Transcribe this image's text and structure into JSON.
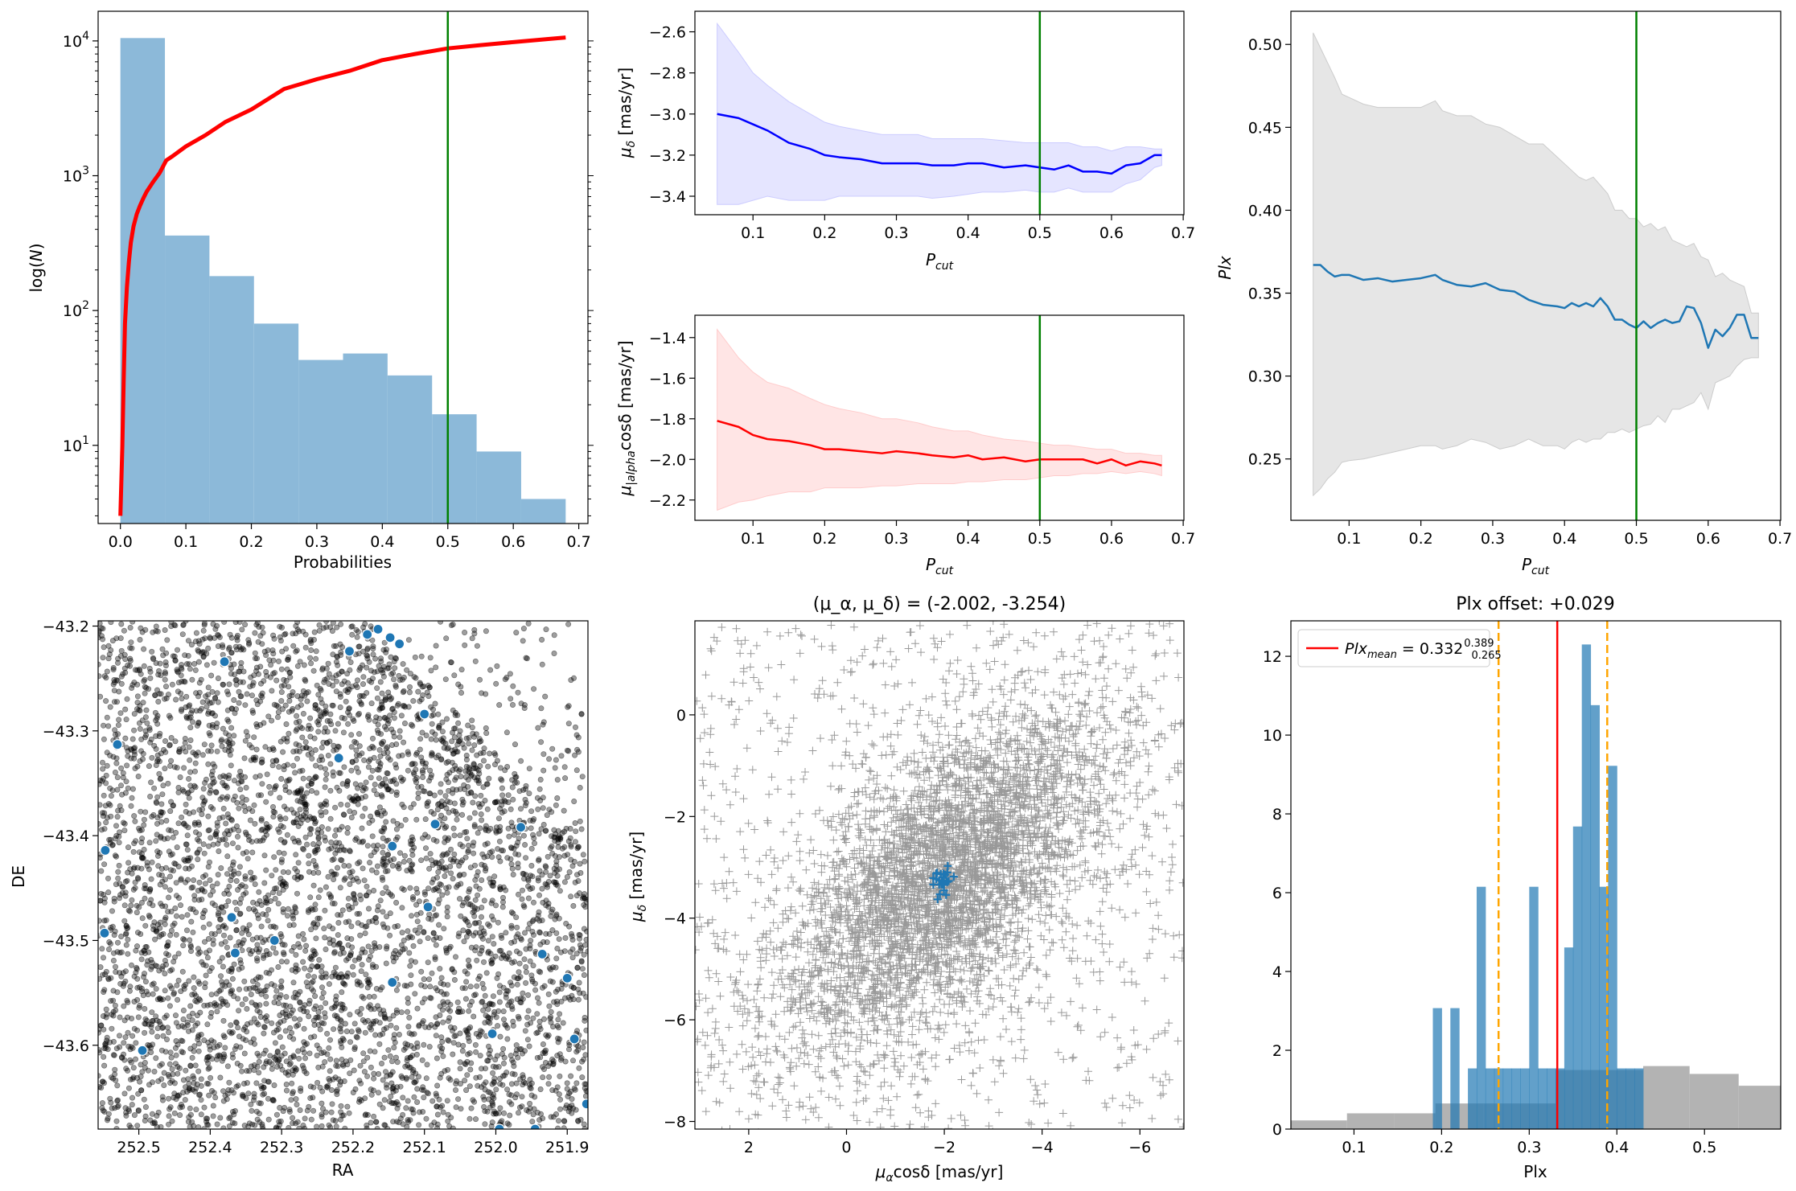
{
  "chart_data": [
    {
      "id": "p1",
      "type": "bar",
      "ylog": true,
      "xlim": [
        -0.034,
        0.714
      ],
      "ylim_log10": [
        0.42,
        4.22
      ],
      "xlabel": "Probabilities",
      "ylabel": "log(N)",
      "xticks": [
        0.0,
        0.1,
        0.2,
        0.3,
        0.4,
        0.5,
        0.6,
        0.7
      ],
      "xtick_labels": [
        "0.0",
        "0.1",
        "0.2",
        "0.3",
        "0.4",
        "0.5",
        "0.6",
        "0.7"
      ],
      "yticks_log10": [
        1,
        2,
        3,
        4
      ],
      "hist_edges": [
        0.0,
        0.068,
        0.136,
        0.204,
        0.272,
        0.34,
        0.408,
        0.476,
        0.544,
        0.612,
        0.68
      ],
      "hist_counts": [
        10500,
        360,
        180,
        80,
        43,
        48,
        33,
        17,
        9,
        4
      ],
      "hist_color": "#8cb9d9",
      "cumulative": {
        "color": "#ff0000",
        "x": [
          0.0,
          0.003,
          0.005,
          0.007,
          0.01,
          0.013,
          0.016,
          0.02,
          0.025,
          0.03,
          0.035,
          0.04,
          0.05,
          0.06,
          0.07,
          0.08,
          0.1,
          0.13,
          0.16,
          0.2,
          0.25,
          0.3,
          0.35,
          0.4,
          0.45,
          0.5,
          0.55,
          0.6,
          0.65,
          0.68
        ],
        "y": [
          3,
          10,
          30,
          80,
          150,
          230,
          320,
          420,
          520,
          600,
          680,
          760,
          900,
          1050,
          1300,
          1400,
          1650,
          2000,
          2500,
          3100,
          4400,
          5200,
          6000,
          7200,
          8000,
          8800,
          9300,
          9800,
          10300,
          10600
        ]
      },
      "vline": {
        "x": 0.5,
        "color": "#008000"
      }
    },
    {
      "id": "p2",
      "type": "line",
      "xlim": [
        0.019,
        0.701
      ],
      "ylim": [
        -3.49,
        -2.5
      ],
      "xlabel": "P_cut",
      "ylabel": "μ_δ [mas/yr]",
      "xticks": [
        0.1,
        0.2,
        0.3,
        0.4,
        0.5,
        0.6,
        0.7
      ],
      "xtick_labels": [
        "0.1",
        "0.2",
        "0.3",
        "0.4",
        "0.5",
        "0.6",
        "0.7"
      ],
      "yticks": [
        -3.4,
        -3.2,
        -3.0,
        -2.8,
        -2.6
      ],
      "ytick_labels": [
        "−3.4",
        "−3.2",
        "−3.0",
        "−2.8",
        "−2.6"
      ],
      "color": "#0000ff",
      "band_color": "#e5e5ff",
      "band_edge": "#ccccff",
      "x": [
        0.05,
        0.08,
        0.1,
        0.12,
        0.15,
        0.18,
        0.2,
        0.22,
        0.25,
        0.28,
        0.3,
        0.33,
        0.35,
        0.38,
        0.4,
        0.42,
        0.45,
        0.48,
        0.5,
        0.52,
        0.54,
        0.56,
        0.58,
        0.6,
        0.62,
        0.64,
        0.66,
        0.67
      ],
      "y": [
        -3.0,
        -3.02,
        -3.05,
        -3.08,
        -3.14,
        -3.17,
        -3.2,
        -3.21,
        -3.22,
        -3.24,
        -3.24,
        -3.24,
        -3.25,
        -3.25,
        -3.24,
        -3.24,
        -3.26,
        -3.25,
        -3.26,
        -3.27,
        -3.25,
        -3.28,
        -3.28,
        -3.29,
        -3.25,
        -3.24,
        -3.2,
        -3.2
      ],
      "upper": [
        -2.56,
        -2.7,
        -2.8,
        -2.86,
        -2.94,
        -3.0,
        -3.04,
        -3.06,
        -3.08,
        -3.1,
        -3.1,
        -3.1,
        -3.12,
        -3.12,
        -3.12,
        -3.12,
        -3.13,
        -3.14,
        -3.14,
        -3.14,
        -3.14,
        -3.16,
        -3.16,
        -3.18,
        -3.16,
        -3.16,
        -3.17,
        -3.17
      ],
      "lower": [
        -3.44,
        -3.44,
        -3.42,
        -3.4,
        -3.42,
        -3.42,
        -3.42,
        -3.4,
        -3.4,
        -3.4,
        -3.4,
        -3.4,
        -3.41,
        -3.4,
        -3.39,
        -3.38,
        -3.38,
        -3.37,
        -3.38,
        -3.38,
        -3.36,
        -3.38,
        -3.38,
        -3.38,
        -3.34,
        -3.32,
        -3.26,
        -3.25
      ],
      "vline": {
        "x": 0.5,
        "color": "#008000"
      }
    },
    {
      "id": "p3",
      "type": "line",
      "xlim": [
        0.019,
        0.701
      ],
      "ylim": [
        -2.3,
        -1.29
      ],
      "xlabel": "P_cut",
      "ylabel": "μ_|alpha cosδ [mas/yr]",
      "xticks": [
        0.1,
        0.2,
        0.3,
        0.4,
        0.5,
        0.6,
        0.7
      ],
      "xtick_labels": [
        "0.1",
        "0.2",
        "0.3",
        "0.4",
        "0.5",
        "0.6",
        "0.7"
      ],
      "yticks": [
        -2.2,
        -2.0,
        -1.8,
        -1.6,
        -1.4
      ],
      "ytick_labels": [
        "−2.2",
        "−2.0",
        "−1.8",
        "−1.6",
        "−1.4"
      ],
      "color": "#ff0000",
      "band_color": "#ffe5e5",
      "band_edge": "#ffcccc",
      "x": [
        0.05,
        0.08,
        0.1,
        0.12,
        0.15,
        0.18,
        0.2,
        0.22,
        0.25,
        0.28,
        0.3,
        0.33,
        0.35,
        0.38,
        0.4,
        0.42,
        0.45,
        0.48,
        0.5,
        0.52,
        0.54,
        0.56,
        0.58,
        0.6,
        0.62,
        0.64,
        0.66,
        0.67
      ],
      "y": [
        -1.81,
        -1.84,
        -1.88,
        -1.9,
        -1.91,
        -1.93,
        -1.95,
        -1.95,
        -1.96,
        -1.97,
        -1.96,
        -1.97,
        -1.98,
        -1.99,
        -1.98,
        -2.0,
        -1.99,
        -2.01,
        -2.0,
        -2.0,
        -2.0,
        -2.0,
        -2.02,
        -2.0,
        -2.03,
        -2.01,
        -2.02,
        -2.03
      ],
      "upper": [
        -1.36,
        -1.5,
        -1.57,
        -1.62,
        -1.65,
        -1.7,
        -1.73,
        -1.75,
        -1.77,
        -1.8,
        -1.8,
        -1.82,
        -1.84,
        -1.86,
        -1.86,
        -1.88,
        -1.9,
        -1.91,
        -1.92,
        -1.93,
        -1.93,
        -1.94,
        -1.95,
        -1.95,
        -1.97,
        -1.97,
        -1.98,
        -1.98
      ],
      "lower": [
        -2.25,
        -2.21,
        -2.2,
        -2.18,
        -2.16,
        -2.16,
        -2.14,
        -2.14,
        -2.14,
        -2.13,
        -2.13,
        -2.12,
        -2.12,
        -2.12,
        -2.11,
        -2.11,
        -2.1,
        -2.1,
        -2.09,
        -2.08,
        -2.08,
        -2.07,
        -2.07,
        -2.06,
        -2.07,
        -2.06,
        -2.07,
        -2.08
      ],
      "vline": {
        "x": 0.5,
        "color": "#008000"
      }
    },
    {
      "id": "p4",
      "type": "line",
      "xlim": [
        0.019,
        0.701
      ],
      "ylim": [
        0.213,
        0.52
      ],
      "xlabel": "P_cut",
      "ylabel": "Plx",
      "xticks": [
        0.1,
        0.2,
        0.3,
        0.4,
        0.5,
        0.6,
        0.7
      ],
      "xtick_labels": [
        "0.1",
        "0.2",
        "0.3",
        "0.4",
        "0.5",
        "0.6",
        "0.7"
      ],
      "yticks": [
        0.25,
        0.3,
        0.35,
        0.4,
        0.45,
        0.5
      ],
      "ytick_labels": [
        "0.25",
        "0.30",
        "0.35",
        "0.40",
        "0.45",
        "0.50"
      ],
      "color": "#1f77b4",
      "band_color": "#e6e6e6",
      "band_edge": "#cccccc",
      "x": [
        0.05,
        0.06,
        0.07,
        0.08,
        0.09,
        0.1,
        0.12,
        0.14,
        0.16,
        0.18,
        0.2,
        0.22,
        0.23,
        0.25,
        0.27,
        0.29,
        0.31,
        0.33,
        0.35,
        0.37,
        0.39,
        0.4,
        0.41,
        0.42,
        0.43,
        0.44,
        0.45,
        0.46,
        0.47,
        0.48,
        0.49,
        0.5,
        0.51,
        0.52,
        0.53,
        0.54,
        0.55,
        0.56,
        0.57,
        0.58,
        0.59,
        0.6,
        0.61,
        0.62,
        0.63,
        0.64,
        0.65,
        0.66,
        0.67
      ],
      "y": [
        0.367,
        0.367,
        0.363,
        0.36,
        0.361,
        0.361,
        0.358,
        0.359,
        0.357,
        0.358,
        0.359,
        0.361,
        0.358,
        0.355,
        0.354,
        0.356,
        0.352,
        0.351,
        0.346,
        0.343,
        0.342,
        0.341,
        0.344,
        0.342,
        0.344,
        0.342,
        0.347,
        0.342,
        0.334,
        0.334,
        0.331,
        0.329,
        0.333,
        0.329,
        0.332,
        0.334,
        0.332,
        0.333,
        0.342,
        0.341,
        0.332,
        0.317,
        0.328,
        0.324,
        0.329,
        0.337,
        0.337,
        0.323,
        0.323
      ],
      "upper": [
        0.507,
        0.498,
        0.489,
        0.48,
        0.47,
        0.468,
        0.464,
        0.462,
        0.462,
        0.462,
        0.462,
        0.466,
        0.46,
        0.457,
        0.457,
        0.452,
        0.45,
        0.445,
        0.44,
        0.44,
        0.432,
        0.428,
        0.424,
        0.42,
        0.418,
        0.42,
        0.415,
        0.41,
        0.4,
        0.4,
        0.395,
        0.395,
        0.39,
        0.392,
        0.388,
        0.39,
        0.382,
        0.38,
        0.378,
        0.38,
        0.372,
        0.37,
        0.36,
        0.362,
        0.358,
        0.356,
        0.354,
        0.338,
        0.338
      ],
      "lower": [
        0.228,
        0.232,
        0.238,
        0.242,
        0.248,
        0.249,
        0.25,
        0.252,
        0.254,
        0.256,
        0.258,
        0.258,
        0.256,
        0.258,
        0.262,
        0.26,
        0.256,
        0.258,
        0.262,
        0.258,
        0.258,
        0.256,
        0.26,
        0.262,
        0.26,
        0.262,
        0.262,
        0.266,
        0.266,
        0.268,
        0.266,
        0.268,
        0.27,
        0.271,
        0.276,
        0.272,
        0.28,
        0.28,
        0.282,
        0.284,
        0.29,
        0.28,
        0.296,
        0.298,
        0.3,
        0.306,
        0.31,
        0.311,
        0.311
      ],
      "vline": {
        "x": 0.5,
        "color": "#008000"
      }
    },
    {
      "id": "p5",
      "type": "scatter",
      "xlim": [
        252.557,
        251.871
      ],
      "ylim": [
        -43.68,
        -43.195
      ],
      "xlabel": "RA",
      "ylabel": "DE",
      "xticks": [
        252.5,
        252.4,
        252.3,
        252.2,
        252.1,
        252.0,
        251.9
      ],
      "xtick_labels": [
        "252.5",
        "252.4",
        "252.3",
        "252.2",
        "252.1",
        "252.0",
        "251.9"
      ],
      "yticks": [
        -43.6,
        -43.5,
        -43.4,
        -43.3,
        -43.2
      ],
      "ytick_labels": [
        "−43.6",
        "−43.5",
        "−43.4",
        "−43.3",
        "−43.2"
      ],
      "field_color": "#000000",
      "member_color": "#1f77b4",
      "members": [
        [
          252.53,
          -43.313
        ],
        [
          252.547,
          -43.414
        ],
        [
          252.548,
          -43.493
        ],
        [
          252.495,
          -43.605
        ],
        [
          252.38,
          -43.234
        ],
        [
          252.37,
          -43.478
        ],
        [
          252.365,
          -43.512
        ],
        [
          252.31,
          -43.5
        ],
        [
          252.22,
          -43.326
        ],
        [
          252.205,
          -43.224
        ],
        [
          252.18,
          -43.208
        ],
        [
          252.165,
          -43.203
        ],
        [
          252.148,
          -43.211
        ],
        [
          252.135,
          -43.217
        ],
        [
          252.1,
          -43.284
        ],
        [
          252.145,
          -43.41
        ],
        [
          252.145,
          -43.54
        ],
        [
          252.085,
          -43.389
        ],
        [
          252.095,
          -43.468
        ],
        [
          252.005,
          -43.589
        ],
        [
          251.995,
          -43.68
        ],
        [
          251.965,
          -43.392
        ],
        [
          251.935,
          -43.513
        ],
        [
          251.945,
          -43.68
        ],
        [
          251.9,
          -43.536
        ],
        [
          251.89,
          -43.594
        ],
        [
          251.873,
          -43.656
        ]
      ]
    },
    {
      "id": "p6",
      "type": "scatter",
      "title": "(μ_α, μ_δ) = (-2.002, -3.254)",
      "xlim": [
        3.1,
        -6.9
      ],
      "ylim": [
        -8.15,
        1.85
      ],
      "xlabel": "μ_α cosδ [mas/yr]",
      "ylabel": "μ_δ [mas/yr]",
      "xticks": [
        2,
        0,
        -2,
        -4,
        -6
      ],
      "xtick_labels": [
        "2",
        "0",
        "−2",
        "−4",
        "−6"
      ],
      "yticks": [
        -8,
        -6,
        -4,
        -2,
        0
      ],
      "ytick_labels": [
        "−8",
        "−6",
        "−4",
        "−2",
        "0"
      ],
      "field_color": "#000000",
      "member_color": "#1f77b4",
      "member_center": [
        -2.002,
        -3.254
      ]
    },
    {
      "id": "p7",
      "type": "bar",
      "title": "Plx offset: +0.029",
      "xlim": [
        0.028,
        0.587
      ],
      "ylim": [
        0,
        12.9
      ],
      "xlabel": "Plx",
      "xticks": [
        0.1,
        0.2,
        0.3,
        0.4,
        0.5
      ],
      "xtick_labels": [
        "0.1",
        "0.2",
        "0.3",
        "0.4",
        "0.5"
      ],
      "yticks": [
        0,
        2,
        4,
        6,
        8,
        10,
        12
      ],
      "ytick_labels": [
        "0",
        "2",
        "4",
        "6",
        "8",
        "10",
        "12"
      ],
      "field_hist": {
        "color": "#b3b3b3",
        "edges": [
          0.028,
          0.092,
          0.146,
          0.193,
          0.248,
          0.33,
          0.43,
          0.483,
          0.539,
          0.587
        ],
        "counts": [
          0.22,
          0.4,
          0.4,
          0.65,
          0.65,
          1.5,
          1.6,
          1.4,
          1.1
        ]
      },
      "member_hist": {
        "color": "#1f77b4",
        "edges": [
          0.19,
          0.2,
          0.21,
          0.22,
          0.23,
          0.24,
          0.25,
          0.26,
          0.27,
          0.28,
          0.29,
          0.3,
          0.31,
          0.32,
          0.33,
          0.34,
          0.35,
          0.36,
          0.37,
          0.38,
          0.39,
          0.4,
          0.41,
          0.42,
          0.43
        ],
        "counts": [
          3.07,
          0,
          3.07,
          0,
          1.54,
          6.15,
          1.54,
          1.54,
          1.54,
          1.54,
          1.54,
          6.15,
          1.54,
          1.54,
          1.54,
          4.61,
          7.68,
          12.3,
          10.76,
          6.15,
          9.22,
          1.54,
          1.54,
          1.54
        ]
      },
      "mean_line": {
        "x": 0.332,
        "color": "#ff0000"
      },
      "dashed_lines": {
        "x": [
          0.265,
          0.389
        ],
        "color": "#ffa500"
      },
      "legend": {
        "label": "Plx_mean = 0.332",
        "sup": "0.389",
        "sub": "0.265",
        "placement": "upper left"
      }
    }
  ]
}
